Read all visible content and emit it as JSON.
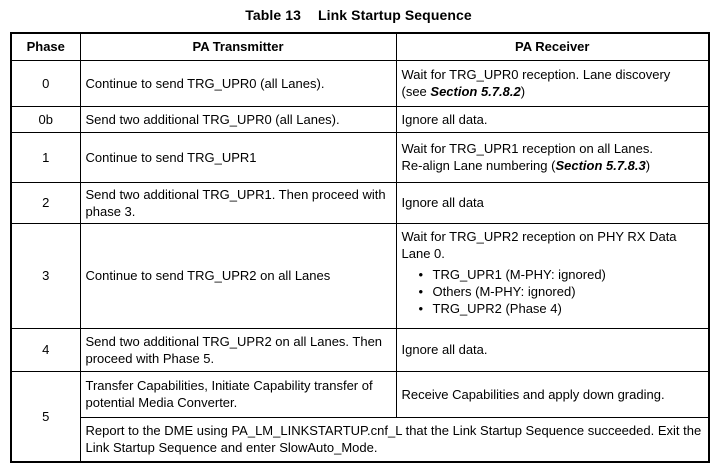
{
  "caption": {
    "number": "Table 13",
    "title": "Link Startup Sequence"
  },
  "icons": {
    "bullet": "•"
  },
  "colors": {
    "border": "#000000",
    "text": "#000000",
    "background": "#ffffff"
  },
  "table": {
    "headers": [
      "Phase",
      "PA Transmitter",
      "PA Receiver"
    ],
    "rows": [
      {
        "phase": "0",
        "tx": "Continue to send TRG_UPR0 (all Lanes).",
        "rx_line1": "Wait for TRG_UPR0 reception. Lane discovery",
        "rx_line2_pre": "(see ",
        "rx_ref": "Section 5.7.8.2",
        "rx_line2_post": ")"
      },
      {
        "phase": "0b",
        "tx": "Send two additional TRG_UPR0 (all Lanes).",
        "rx": "Ignore all data."
      },
      {
        "phase": "1",
        "tx": "Continue to send TRG_UPR1",
        "rx_line1": "Wait for TRG_UPR1 reception on all Lanes.",
        "rx_line2_pre": "Re-align Lane numbering (",
        "rx_ref": "Section 5.7.8.3",
        "rx_line2_post": ")"
      },
      {
        "phase": "2",
        "tx": "Send two additional TRG_UPR1. Then proceed with phase 3.",
        "rx": "Ignore all data"
      },
      {
        "phase": "3",
        "tx": "Continue to send TRG_UPR2 on all Lanes",
        "rx_intro": "Wait for TRG_UPR2 reception on PHY RX Data Lane 0.",
        "rx_bullets": [
          "TRG_UPR1 (M-PHY: ignored)",
          "Others (M-PHY: ignored)",
          "TRG_UPR2 (Phase 4)"
        ]
      },
      {
        "phase": "4",
        "tx": "Send two additional TRG_UPR2 on all Lanes. Then proceed with Phase 5.",
        "rx": "Ignore all data."
      },
      {
        "phase": "5",
        "tx": "Transfer Capabilities, Initiate Capability transfer of potential Media Converter.",
        "rx": "Receive Capabilities and apply down grading.",
        "merged_note": "Report to the DME using PA_LM_LINKSTARTUP.cnf_L that the Link Startup Sequence succeeded. Exit the Link Startup Sequence and enter SlowAuto_Mode."
      }
    ]
  }
}
